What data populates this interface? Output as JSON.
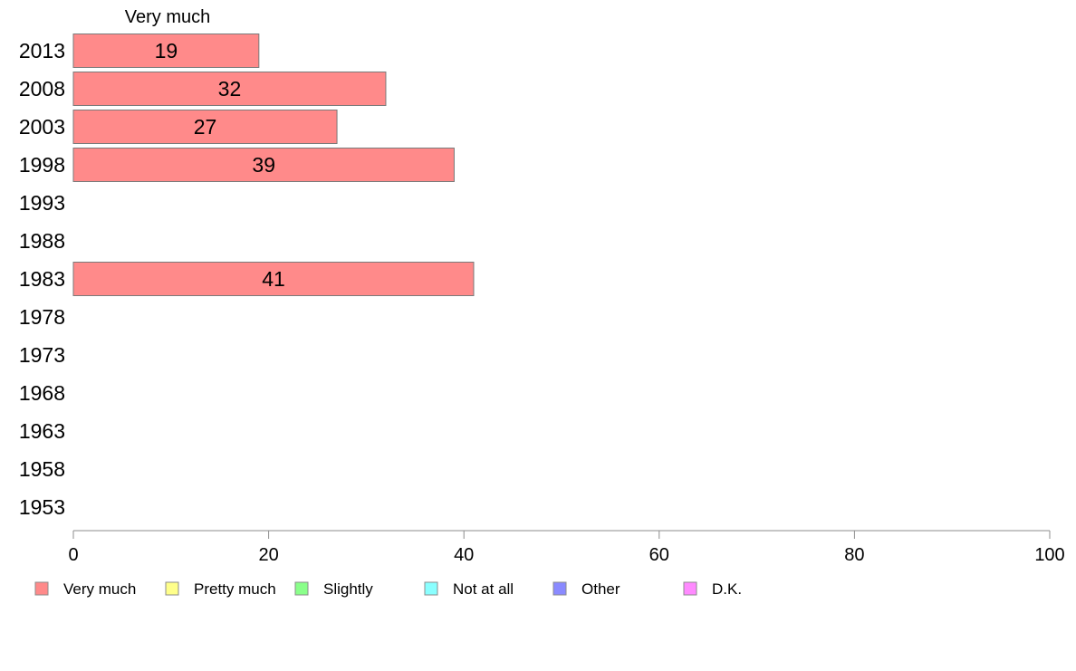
{
  "chart_data": {
    "type": "bar",
    "orientation": "horizontal",
    "series_header": "Very much",
    "categories": [
      "2013",
      "2008",
      "2003",
      "1998",
      "1993",
      "1988",
      "1983",
      "1978",
      "1973",
      "1968",
      "1963",
      "1958",
      "1953"
    ],
    "series": [
      {
        "name": "Very much",
        "color": "#ff8a8a",
        "values": [
          19,
          32,
          27,
          39,
          null,
          null,
          41,
          null,
          null,
          null,
          null,
          null,
          null
        ]
      }
    ],
    "data_labels": [
      "19",
      "32",
      "27",
      "39",
      "",
      "",
      "41",
      "",
      "",
      "",
      "",
      "",
      ""
    ],
    "xlim": [
      0,
      100
    ],
    "xticks": [
      0,
      20,
      40,
      60,
      80,
      100
    ],
    "grid": false,
    "legend": {
      "placement": "bottom",
      "items": [
        {
          "label": "Very much",
          "color": "#ff8a8a"
        },
        {
          "label": "Pretty much",
          "color": "#ffff8a"
        },
        {
          "label": "Slightly",
          "color": "#8aff8a"
        },
        {
          "label": "Not at all",
          "color": "#8affff"
        },
        {
          "label": "Other",
          "color": "#8a8aff"
        },
        {
          "label": "D.K.",
          "color": "#ff8aff"
        }
      ]
    }
  }
}
